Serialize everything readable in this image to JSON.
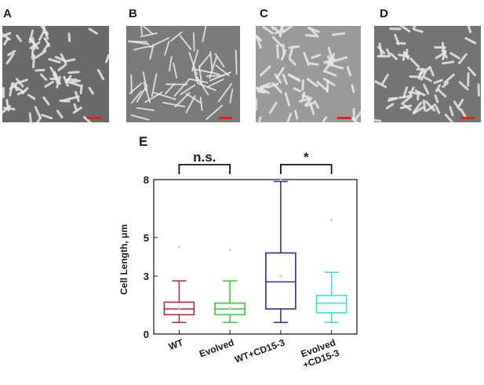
{
  "panels": [
    {
      "label": "A",
      "bg": "#6a6a6a"
    },
    {
      "label": "B",
      "bg": "#7a7a7a"
    },
    {
      "label": "C",
      "bg": "#9a9a9a"
    },
    {
      "label": "D",
      "bg": "#747474"
    }
  ],
  "chart_data": {
    "type": "box",
    "panel_label": "E",
    "ylabel": "Cell Length, μm",
    "ylim": [
      0,
      8
    ],
    "yticks": [
      0,
      3,
      5,
      8
    ],
    "categories": [
      "WT",
      "Evolved",
      "WT+CD15-3",
      "Evolved\n+CD15-3"
    ],
    "category_lines": [
      [
        "WT"
      ],
      [
        "Evolved"
      ],
      [
        "WT+CD15-3"
      ],
      [
        "Evolved",
        "+CD15-3"
      ]
    ],
    "series": [
      {
        "category": "WT",
        "color": "#c0262c",
        "min": 0.6,
        "q1": 1.0,
        "median": 1.3,
        "q3": 1.65,
        "max": 2.75,
        "mean": 1.35,
        "outlier": 4.5
      },
      {
        "category": "Evolved",
        "color": "#33cc33",
        "min": 0.6,
        "q1": 1.0,
        "median": 1.3,
        "q3": 1.6,
        "max": 2.75,
        "mean": 1.35,
        "outlier": 4.35
      },
      {
        "category": "WT+CD15-3",
        "color": "#2b2ba6",
        "min": 0.6,
        "q1": 1.3,
        "median": 2.7,
        "q3": 4.2,
        "max": 7.9,
        "mean": 3.0,
        "outlier": 8.05
      },
      {
        "category": "Evolved\n+CD15-3",
        "color": "#33e0e0",
        "min": 0.6,
        "q1": 1.1,
        "median": 1.6,
        "q3": 2.0,
        "max": 3.2,
        "mean": 1.6,
        "outlier": 5.9
      }
    ],
    "annotations": [
      {
        "text": "n.s.",
        "from": 0,
        "to": 1
      },
      {
        "text": "*",
        "from": 2,
        "to": 3
      }
    ]
  }
}
